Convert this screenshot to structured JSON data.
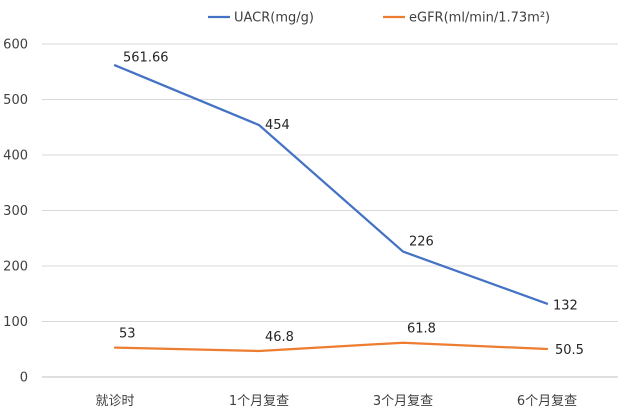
{
  "chart_data": {
    "type": "line",
    "title": "",
    "xlabel": "",
    "ylabel": "",
    "categories": [
      "就诊时",
      "1个月复查",
      "3个月复查",
      "6个月复查"
    ],
    "ylim": [
      0,
      600
    ],
    "yticks": [
      "0",
      "100",
      "200",
      "300",
      "400",
      "500",
      "600"
    ],
    "grid": true,
    "legend_position": "top",
    "series": [
      {
        "name": "UACR(mg/g)",
        "color": "#4472C4",
        "values": [
          561.66,
          454,
          226,
          132
        ],
        "labels": [
          "561.66",
          "454",
          "226",
          "132"
        ]
      },
      {
        "name": "eGFR(ml/min/1.73m²)",
        "color": "#ED7D31",
        "values": [
          53,
          46.8,
          61.8,
          50.5
        ],
        "labels": [
          "53",
          "46.8",
          "61.8",
          "50.5"
        ]
      }
    ]
  }
}
